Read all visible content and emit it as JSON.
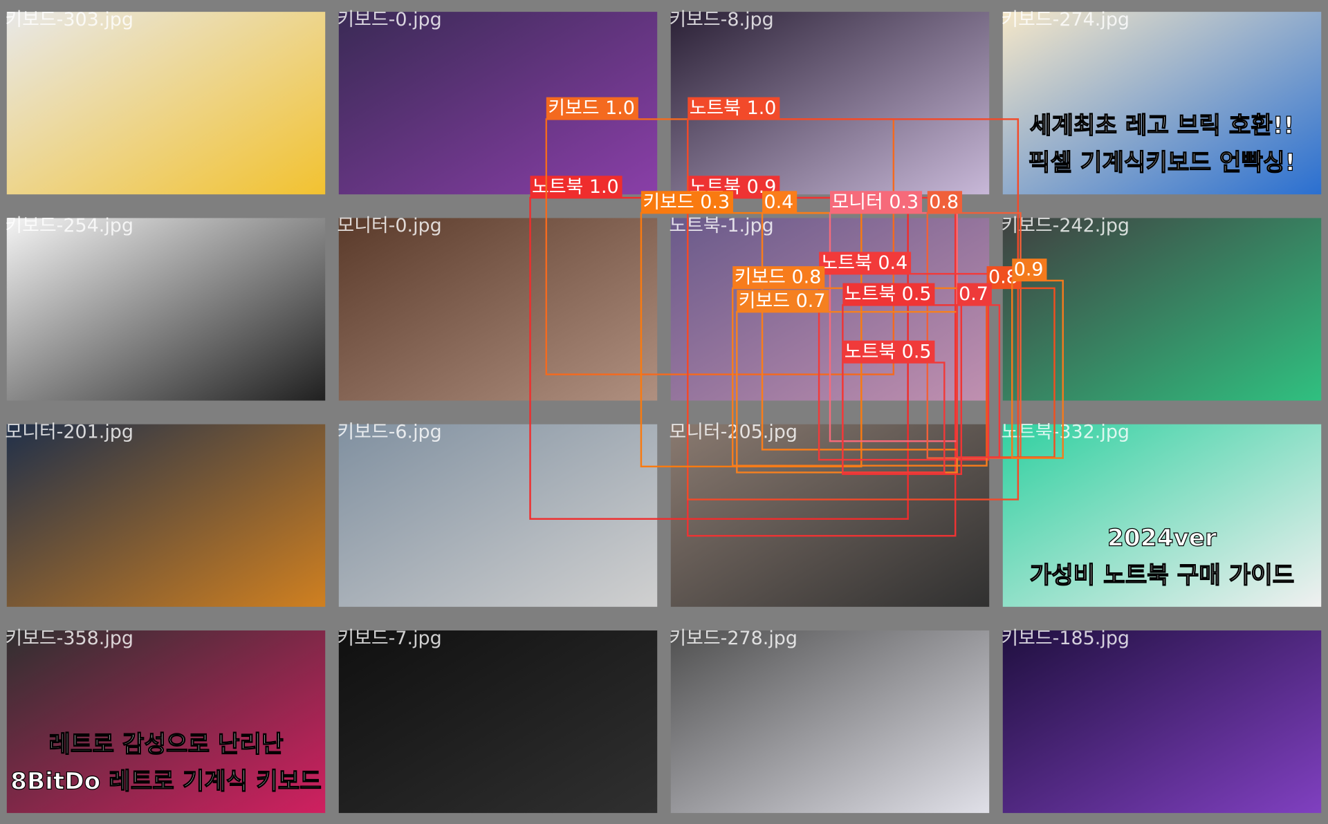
{
  "tiles": [
    {
      "filename": "키보드-303.jpg"
    },
    {
      "filename": "키보드-0.jpg"
    },
    {
      "filename": "키보드-8.jpg"
    },
    {
      "filename": "키보드-274.jpg",
      "texts": [
        "세계최초 레고 브릭 호환!!",
        "픽셀 기계식키보드 언빡싱!"
      ]
    },
    {
      "filename": "키보드-254.jpg"
    },
    {
      "filename": "모니터-0.jpg"
    },
    {
      "filename": "노트북-1.jpg"
    },
    {
      "filename": "키보드-242.jpg"
    },
    {
      "filename": "모니터-201.jpg"
    },
    {
      "filename": "키보드-6.jpg"
    },
    {
      "filename": "모니터-205.jpg"
    },
    {
      "filename": "노트북-332.jpg",
      "texts": [
        "2024ver",
        "가성비 노트북 구매 가이드"
      ]
    },
    {
      "filename": "키보드-358.jpg",
      "texts": [
        "레트로 감성으로 난리난",
        "8BitDo 레트로 기계식 키보드"
      ]
    },
    {
      "filename": "키보드-7.jpg"
    },
    {
      "filename": "키보드-278.jpg"
    },
    {
      "filename": "키보드-185.jpg"
    }
  ],
  "detections": [
    {
      "label": "노트북 1.0"
    },
    {
      "label": "노트북 0.9"
    },
    {
      "label": "키보드 1.0"
    },
    {
      "label": "노트북 1.0"
    },
    {
      "label": "키보드 0.3"
    },
    {
      "label": "0.4"
    },
    {
      "label": "모니터 0.3"
    },
    {
      "label": "0.8"
    },
    {
      "label": "노트북 0.4"
    },
    {
      "label": "키보드 0.8"
    },
    {
      "label": "0.8"
    },
    {
      "label": "0.9"
    },
    {
      "label": "키보드 0.7"
    },
    {
      "label": "노트북 0.5"
    },
    {
      "label": "0.7"
    },
    {
      "label": "노트북 0.5"
    }
  ]
}
